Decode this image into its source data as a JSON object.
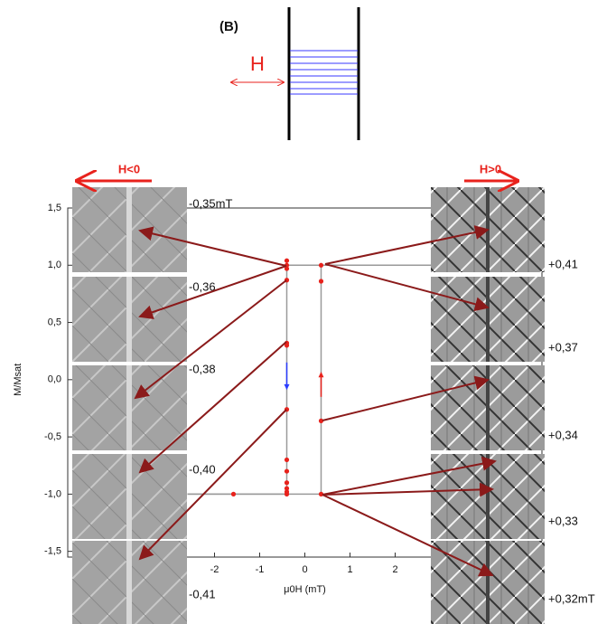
{
  "diagram": {
    "panel_label": "(B)",
    "field_symbol": "H"
  },
  "chart_data": {
    "type": "scatter",
    "x_label": "μ0H (mT)",
    "y_label": "M/Msat",
    "xlim": [
      -5.25,
      5.25
    ],
    "ylim": [
      -1.55,
      1.5
    ],
    "xticks": [
      -2,
      -1,
      0,
      1,
      2
    ],
    "yticks": [
      {
        "value": 1.5,
        "label": "1,5"
      },
      {
        "value": 1.0,
        "label": "1,0"
      },
      {
        "value": 0.5,
        "label": "0,5"
      },
      {
        "value": 0.0,
        "label": "0,0"
      },
      {
        "value": -0.5,
        "label": "-0,5"
      },
      {
        "value": -1.0,
        "label": "-1,0"
      },
      {
        "value": -1.5,
        "label": "-1,5"
      }
    ],
    "series": [
      {
        "type": "line",
        "color": "#9a9a9a",
        "x": [
          2.8,
          -0.4,
          -0.4,
          -2.6
        ],
        "values": [
          1.0,
          1.0,
          -1.0,
          -1.0
        ]
      },
      {
        "type": "line",
        "color": "#9a9a9a",
        "x": [
          -2.6,
          0.36,
          0.36,
          2.8
        ],
        "values": [
          -1.0,
          -1.0,
          1.0,
          1.0
        ]
      },
      {
        "type": "scatter",
        "color": "#e8221c",
        "x": [
          -0.4,
          -0.4,
          -0.4,
          -0.4,
          -0.4,
          -0.4,
          -0.4,
          -0.4,
          -0.4,
          -0.4,
          -0.4,
          -0.4,
          -0.4,
          -1.58
        ],
        "values": [
          1.04,
          1.0,
          0.97,
          0.87,
          0.32,
          0.3,
          -0.26,
          -0.7,
          -0.8,
          -0.9,
          -0.95,
          -0.98,
          -1.0,
          -1.0
        ]
      },
      {
        "type": "scatter",
        "color": "#e8221c",
        "x": [
          0.36,
          0.36,
          0.36,
          0.36
        ],
        "values": [
          1.0,
          0.86,
          -0.36,
          -1.0
        ]
      }
    ],
    "left_label": "H<0",
    "right_label": "H>0",
    "left_fields": [
      "-0,35mT",
      "-0,36",
      "-0,38",
      "-0,40",
      "-0,41"
    ],
    "right_fields": [
      "+0,41",
      "+0,37",
      "+0,34",
      "+0,33",
      "+0,32mT"
    ]
  }
}
